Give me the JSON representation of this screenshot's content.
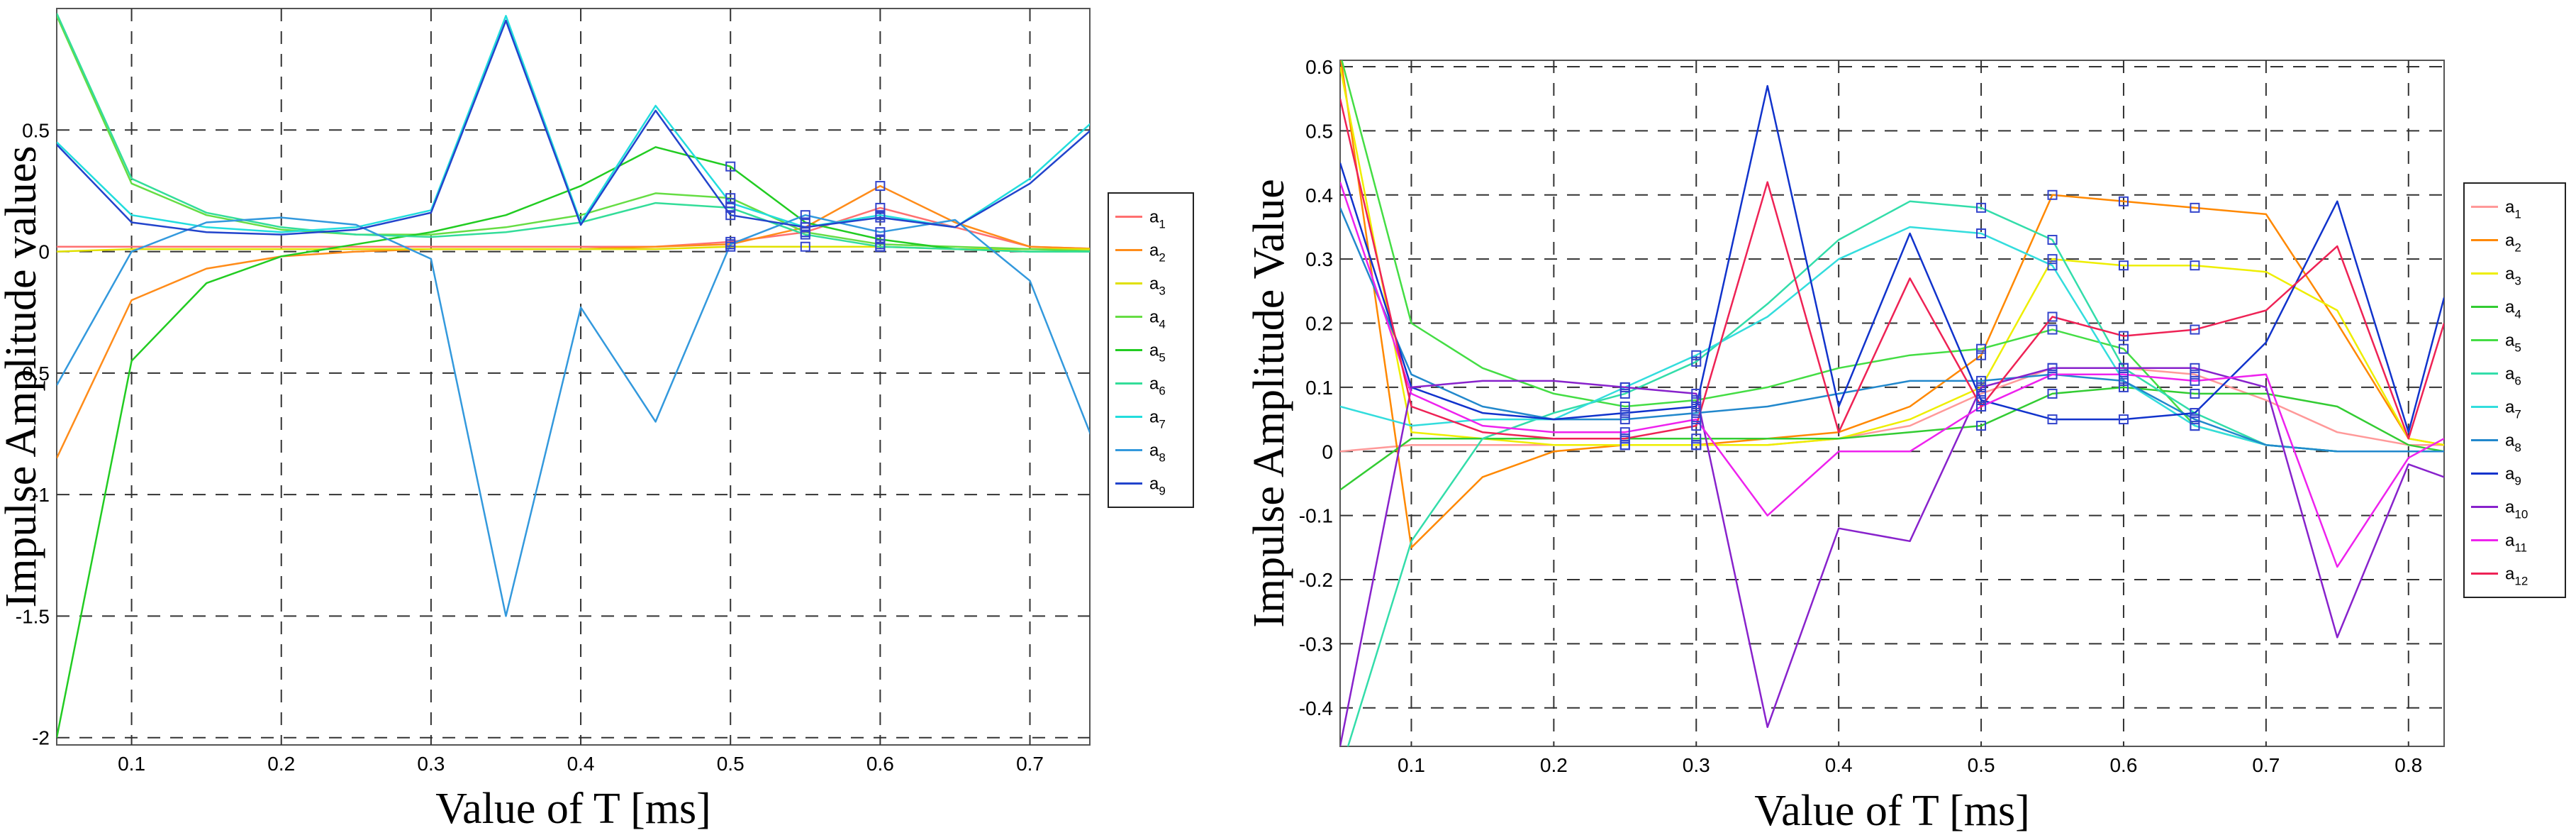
{
  "chart_data": [
    {
      "type": "line",
      "xlabel": "Value of T [ms]",
      "ylabel": "Impulse Amplitude values",
      "xlim": [
        0.05,
        0.74
      ],
      "ylim": [
        -2.03,
        1.0
      ],
      "xticks": [
        0.1,
        0.2,
        0.3,
        0.4,
        0.5,
        0.6,
        0.7
      ],
      "yticks": [
        -2,
        -1.5,
        -1,
        -0.5,
        0,
        0.5
      ],
      "ytick_labels": [
        "-2",
        "-1.5",
        "-1",
        "-0.5",
        "0",
        "0.5"
      ],
      "grid": true,
      "legend_position": "right",
      "markers_at_x": [
        0.5,
        0.55,
        0.6
      ],
      "x": [
        0.05,
        0.1,
        0.15,
        0.2,
        0.25,
        0.3,
        0.35,
        0.4,
        0.45,
        0.5,
        0.55,
        0.6,
        0.65,
        0.7,
        0.75
      ],
      "series": [
        {
          "name": "a",
          "sub": "1",
          "color": "#ff7070",
          "values": [
            0.02,
            0.02,
            0.02,
            0.02,
            0.02,
            0.02,
            0.02,
            0.02,
            0.02,
            0.04,
            0.08,
            0.18,
            0.1,
            0.02,
            0.01
          ]
        },
        {
          "name": "a",
          "sub": "2",
          "color": "#ff8c1a",
          "values": [
            -0.85,
            -0.2,
            -0.07,
            -0.02,
            0.0,
            0.01,
            0.01,
            0.01,
            0.02,
            0.03,
            0.1,
            0.27,
            0.12,
            0.02,
            0.01
          ]
        },
        {
          "name": "a",
          "sub": "3",
          "color": "#e0e000",
          "values": [
            0.0,
            0.01,
            0.01,
            0.01,
            0.01,
            0.01,
            0.01,
            0.01,
            0.01,
            0.02,
            0.02,
            0.02,
            0.01,
            0.01,
            0.01
          ]
        },
        {
          "name": "a",
          "sub": "4",
          "color": "#66dd44",
          "values": [
            0.97,
            0.28,
            0.15,
            0.09,
            0.07,
            0.07,
            0.1,
            0.15,
            0.24,
            0.22,
            0.08,
            0.03,
            0.02,
            0.01,
            0.0
          ]
        },
        {
          "name": "a",
          "sub": "5",
          "color": "#22cc22",
          "values": [
            -2.0,
            -0.45,
            -0.13,
            -0.02,
            0.03,
            0.08,
            0.15,
            0.27,
            0.43,
            0.35,
            0.12,
            0.05,
            0.01,
            0.0,
            0.0
          ]
        },
        {
          "name": "a",
          "sub": "6",
          "color": "#33dd99",
          "values": [
            0.98,
            0.3,
            0.16,
            0.1,
            0.07,
            0.06,
            0.08,
            0.12,
            0.2,
            0.18,
            0.07,
            0.02,
            0.01,
            0.0,
            0.0
          ]
        },
        {
          "name": "a",
          "sub": "7",
          "color": "#22dddd",
          "values": [
            0.45,
            0.15,
            0.1,
            0.08,
            0.1,
            0.17,
            0.97,
            0.12,
            0.6,
            0.2,
            0.1,
            0.15,
            0.1,
            0.3,
            0.58
          ]
        },
        {
          "name": "a",
          "sub": "8",
          "color": "#3399dd",
          "values": [
            -0.55,
            0.0,
            0.12,
            0.14,
            0.11,
            -0.03,
            -1.5,
            -0.23,
            -0.7,
            0.03,
            0.15,
            0.08,
            0.13,
            -0.12,
            -0.9
          ]
        },
        {
          "name": "a",
          "sub": "9",
          "color": "#2244cc",
          "values": [
            0.44,
            0.12,
            0.08,
            0.07,
            0.09,
            0.16,
            0.95,
            0.11,
            0.58,
            0.15,
            0.1,
            0.14,
            0.1,
            0.28,
            0.55
          ]
        }
      ]
    },
    {
      "type": "line",
      "xlabel": "Value of T [ms]",
      "ylabel": "Impulse Amplitude Value",
      "xlim": [
        0.05,
        0.825
      ],
      "ylim": [
        -0.46,
        0.61
      ],
      "xticks": [
        0.1,
        0.2,
        0.3,
        0.4,
        0.5,
        0.6,
        0.7,
        0.8
      ],
      "yticks": [
        -0.4,
        -0.3,
        -0.2,
        -0.1,
        0,
        0.1,
        0.2,
        0.3,
        0.4,
        0.5,
        0.6
      ],
      "ytick_labels": [
        "-0.4",
        "-0.3",
        "-0.2",
        "-0.1",
        "0",
        "0.1",
        "0.2",
        "0.3",
        "0.4",
        "0.5",
        "0.6"
      ],
      "grid": true,
      "legend_position": "right",
      "markers_at_x": [
        0.25,
        0.3,
        0.5,
        0.55,
        0.6,
        0.65
      ],
      "x": [
        0.05,
        0.1,
        0.15,
        0.2,
        0.25,
        0.3,
        0.35,
        0.4,
        0.45,
        0.5,
        0.55,
        0.6,
        0.65,
        0.7,
        0.75,
        0.8,
        0.825
      ],
      "series": [
        {
          "name": "a",
          "sub": "1",
          "color": "#ff9999",
          "values": [
            0.0,
            0.01,
            0.01,
            0.01,
            0.01,
            0.01,
            0.01,
            0.02,
            0.04,
            0.09,
            0.13,
            0.13,
            0.12,
            0.08,
            0.03,
            0.01,
            0.01
          ]
        },
        {
          "name": "a",
          "sub": "2",
          "color": "#ff8800",
          "values": [
            0.62,
            -0.15,
            -0.04,
            0.0,
            0.01,
            0.01,
            0.02,
            0.03,
            0.07,
            0.15,
            0.4,
            0.39,
            0.38,
            0.37,
            0.2,
            0.02,
            0.01
          ]
        },
        {
          "name": "a",
          "sub": "3",
          "color": "#eeee00",
          "values": [
            0.6,
            0.03,
            0.02,
            0.01,
            0.01,
            0.01,
            0.01,
            0.02,
            0.05,
            0.1,
            0.3,
            0.29,
            0.29,
            0.28,
            0.22,
            0.02,
            0.01
          ]
        },
        {
          "name": "a",
          "sub": "4",
          "color": "#33cc33",
          "values": [
            -0.06,
            0.02,
            0.02,
            0.02,
            0.02,
            0.02,
            0.02,
            0.02,
            0.03,
            0.04,
            0.09,
            0.1,
            0.09,
            0.09,
            0.07,
            0.01,
            0.0
          ]
        },
        {
          "name": "a",
          "sub": "5",
          "color": "#44dd44",
          "values": [
            0.62,
            0.2,
            0.13,
            0.09,
            0.07,
            0.08,
            0.1,
            0.13,
            0.15,
            0.16,
            0.19,
            0.16,
            0.04,
            0.01,
            0.0,
            0.0,
            0.0
          ]
        },
        {
          "name": "a",
          "sub": "6",
          "color": "#33ddaa",
          "values": [
            -0.5,
            -0.14,
            0.02,
            0.06,
            0.09,
            0.14,
            0.23,
            0.33,
            0.39,
            0.38,
            0.33,
            0.13,
            0.06,
            0.01,
            0.0,
            0.0,
            0.0
          ]
        },
        {
          "name": "a",
          "sub": "7",
          "color": "#33dddd",
          "values": [
            0.07,
            0.04,
            0.05,
            0.05,
            0.1,
            0.15,
            0.21,
            0.3,
            0.35,
            0.34,
            0.29,
            0.11,
            0.04,
            0.01,
            0.0,
            0.0,
            0.0
          ]
        },
        {
          "name": "a",
          "sub": "8",
          "color": "#2288cc",
          "values": [
            0.38,
            0.12,
            0.07,
            0.05,
            0.05,
            0.06,
            0.07,
            0.09,
            0.11,
            0.11,
            0.12,
            0.11,
            0.05,
            0.01,
            0.0,
            0.0,
            0.0
          ]
        },
        {
          "name": "a",
          "sub": "9",
          "color": "#1133cc",
          "values": [
            0.45,
            0.1,
            0.06,
            0.05,
            0.06,
            0.07,
            0.57,
            0.07,
            0.34,
            0.08,
            0.05,
            0.05,
            0.06,
            0.17,
            0.39,
            0.03,
            0.24
          ]
        },
        {
          "name": "a",
          "sub": "10",
          "color": "#8822cc",
          "values": [
            -0.46,
            0.1,
            0.11,
            0.11,
            0.1,
            0.09,
            -0.43,
            -0.12,
            -0.14,
            0.1,
            0.13,
            0.13,
            0.13,
            0.1,
            -0.29,
            -0.02,
            -0.04
          ]
        },
        {
          "name": "a",
          "sub": "11",
          "color": "#ee22ee",
          "values": [
            0.42,
            0.09,
            0.04,
            0.03,
            0.03,
            0.05,
            -0.1,
            0.0,
            0.0,
            0.07,
            0.12,
            0.12,
            0.11,
            0.12,
            -0.18,
            -0.01,
            0.02
          ]
        },
        {
          "name": "a",
          "sub": "12",
          "color": "#ee2255",
          "values": [
            0.55,
            0.07,
            0.03,
            0.02,
            0.02,
            0.04,
            0.42,
            0.03,
            0.27,
            0.07,
            0.21,
            0.18,
            0.19,
            0.22,
            0.32,
            0.02,
            0.2
          ]
        }
      ]
    }
  ]
}
